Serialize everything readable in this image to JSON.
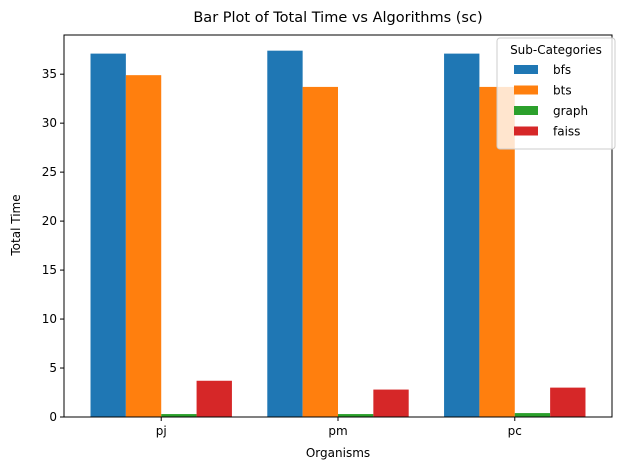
{
  "chart_data": {
    "type": "bar",
    "title": "Bar Plot of Total Time vs Algorithms (sc)",
    "xlabel": "Organisms",
    "ylabel": "Total Time",
    "categories": [
      "pj",
      "pm",
      "pc"
    ],
    "series": [
      {
        "name": "bfs",
        "values": [
          37.1,
          37.4,
          37.1
        ],
        "color": "#1f77b4"
      },
      {
        "name": "bts",
        "values": [
          34.9,
          33.7,
          33.7
        ],
        "color": "#ff7f0e"
      },
      {
        "name": "graph",
        "values": [
          0.3,
          0.3,
          0.4
        ],
        "color": "#2ca02c"
      },
      {
        "name": "faiss",
        "values": [
          3.7,
          2.8,
          3.0
        ],
        "color": "#d62728"
      }
    ],
    "ylim": [
      0,
      39
    ],
    "yticks": [
      0,
      5,
      10,
      15,
      20,
      25,
      30,
      35
    ],
    "grid": false,
    "legend": {
      "title": "Sub-Categories",
      "placement": "top-right"
    }
  }
}
